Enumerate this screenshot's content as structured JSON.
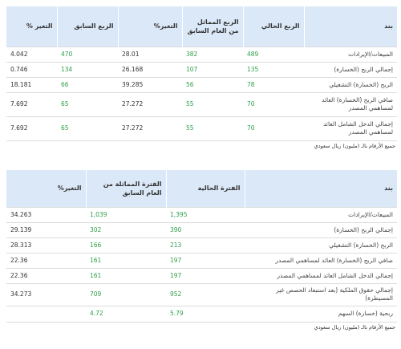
{
  "table1": {
    "headers": [
      "بند",
      "الربع الحالي",
      "الربع المماثل من العام السابق",
      "التغير%",
      "الربع السابق",
      "التغير %"
    ],
    "rows": [
      [
        "المبيعات/الإيرادات",
        "489",
        "382",
        "28.01",
        "470",
        "4.042"
      ],
      [
        "إجمالي الربح (الخسارة)",
        "135",
        "107",
        "26.168",
        "134",
        "0.746"
      ],
      [
        "الربح (الخسارة) التشغيلي",
        "78",
        "56",
        "39.285",
        "66",
        "18.181"
      ],
      [
        "صافي الربح (الخسارة) العائد لمساهمي المصدر",
        "70",
        "55",
        "27.272",
        "65",
        "7.692"
      ],
      [
        "إجمالي الدخل الشامل العائد لمساهمي المصدر",
        "70",
        "55",
        "27.272",
        "65",
        "7.692"
      ]
    ],
    "note": "جميع الأرقام بالـ (مليون) ريال سعودي"
  },
  "table2": {
    "headers": [
      "بند",
      "الفترة الحالية",
      "الفترة المماثلة من العام السابق",
      "التغير%"
    ],
    "rows": [
      [
        "المبيعات/الإيرادات",
        "1,395",
        "1,039",
        "34.263"
      ],
      [
        "إجمالي الربح (الخسارة)",
        "390",
        "302",
        "29.139"
      ],
      [
        "الربح (الخسارة) التشغيلي",
        "213",
        "166",
        "28.313"
      ],
      [
        "صافي الربح (الخسارة) العائد لمساهمي المصدر",
        "197",
        "161",
        "22.36"
      ],
      [
        "إجمالي الدخل الشامل العائد لمساهمي المصدر",
        "197",
        "161",
        "22.36"
      ],
      [
        "إجمالي حقوق الملكية (بعد استبعاد الحصص غير المسيطرة)",
        "952",
        "709",
        "34.273"
      ],
      [
        "ربحية (خسارة) السهم",
        "5.79",
        "4.72",
        ""
      ]
    ],
    "note": "جميع الأرقام بالـ (مليون) ريال سعودي"
  },
  "colors": {
    "header_bg": "#dbe8f8",
    "green": "#2e9e4a",
    "border": "#dcdcdc"
  }
}
